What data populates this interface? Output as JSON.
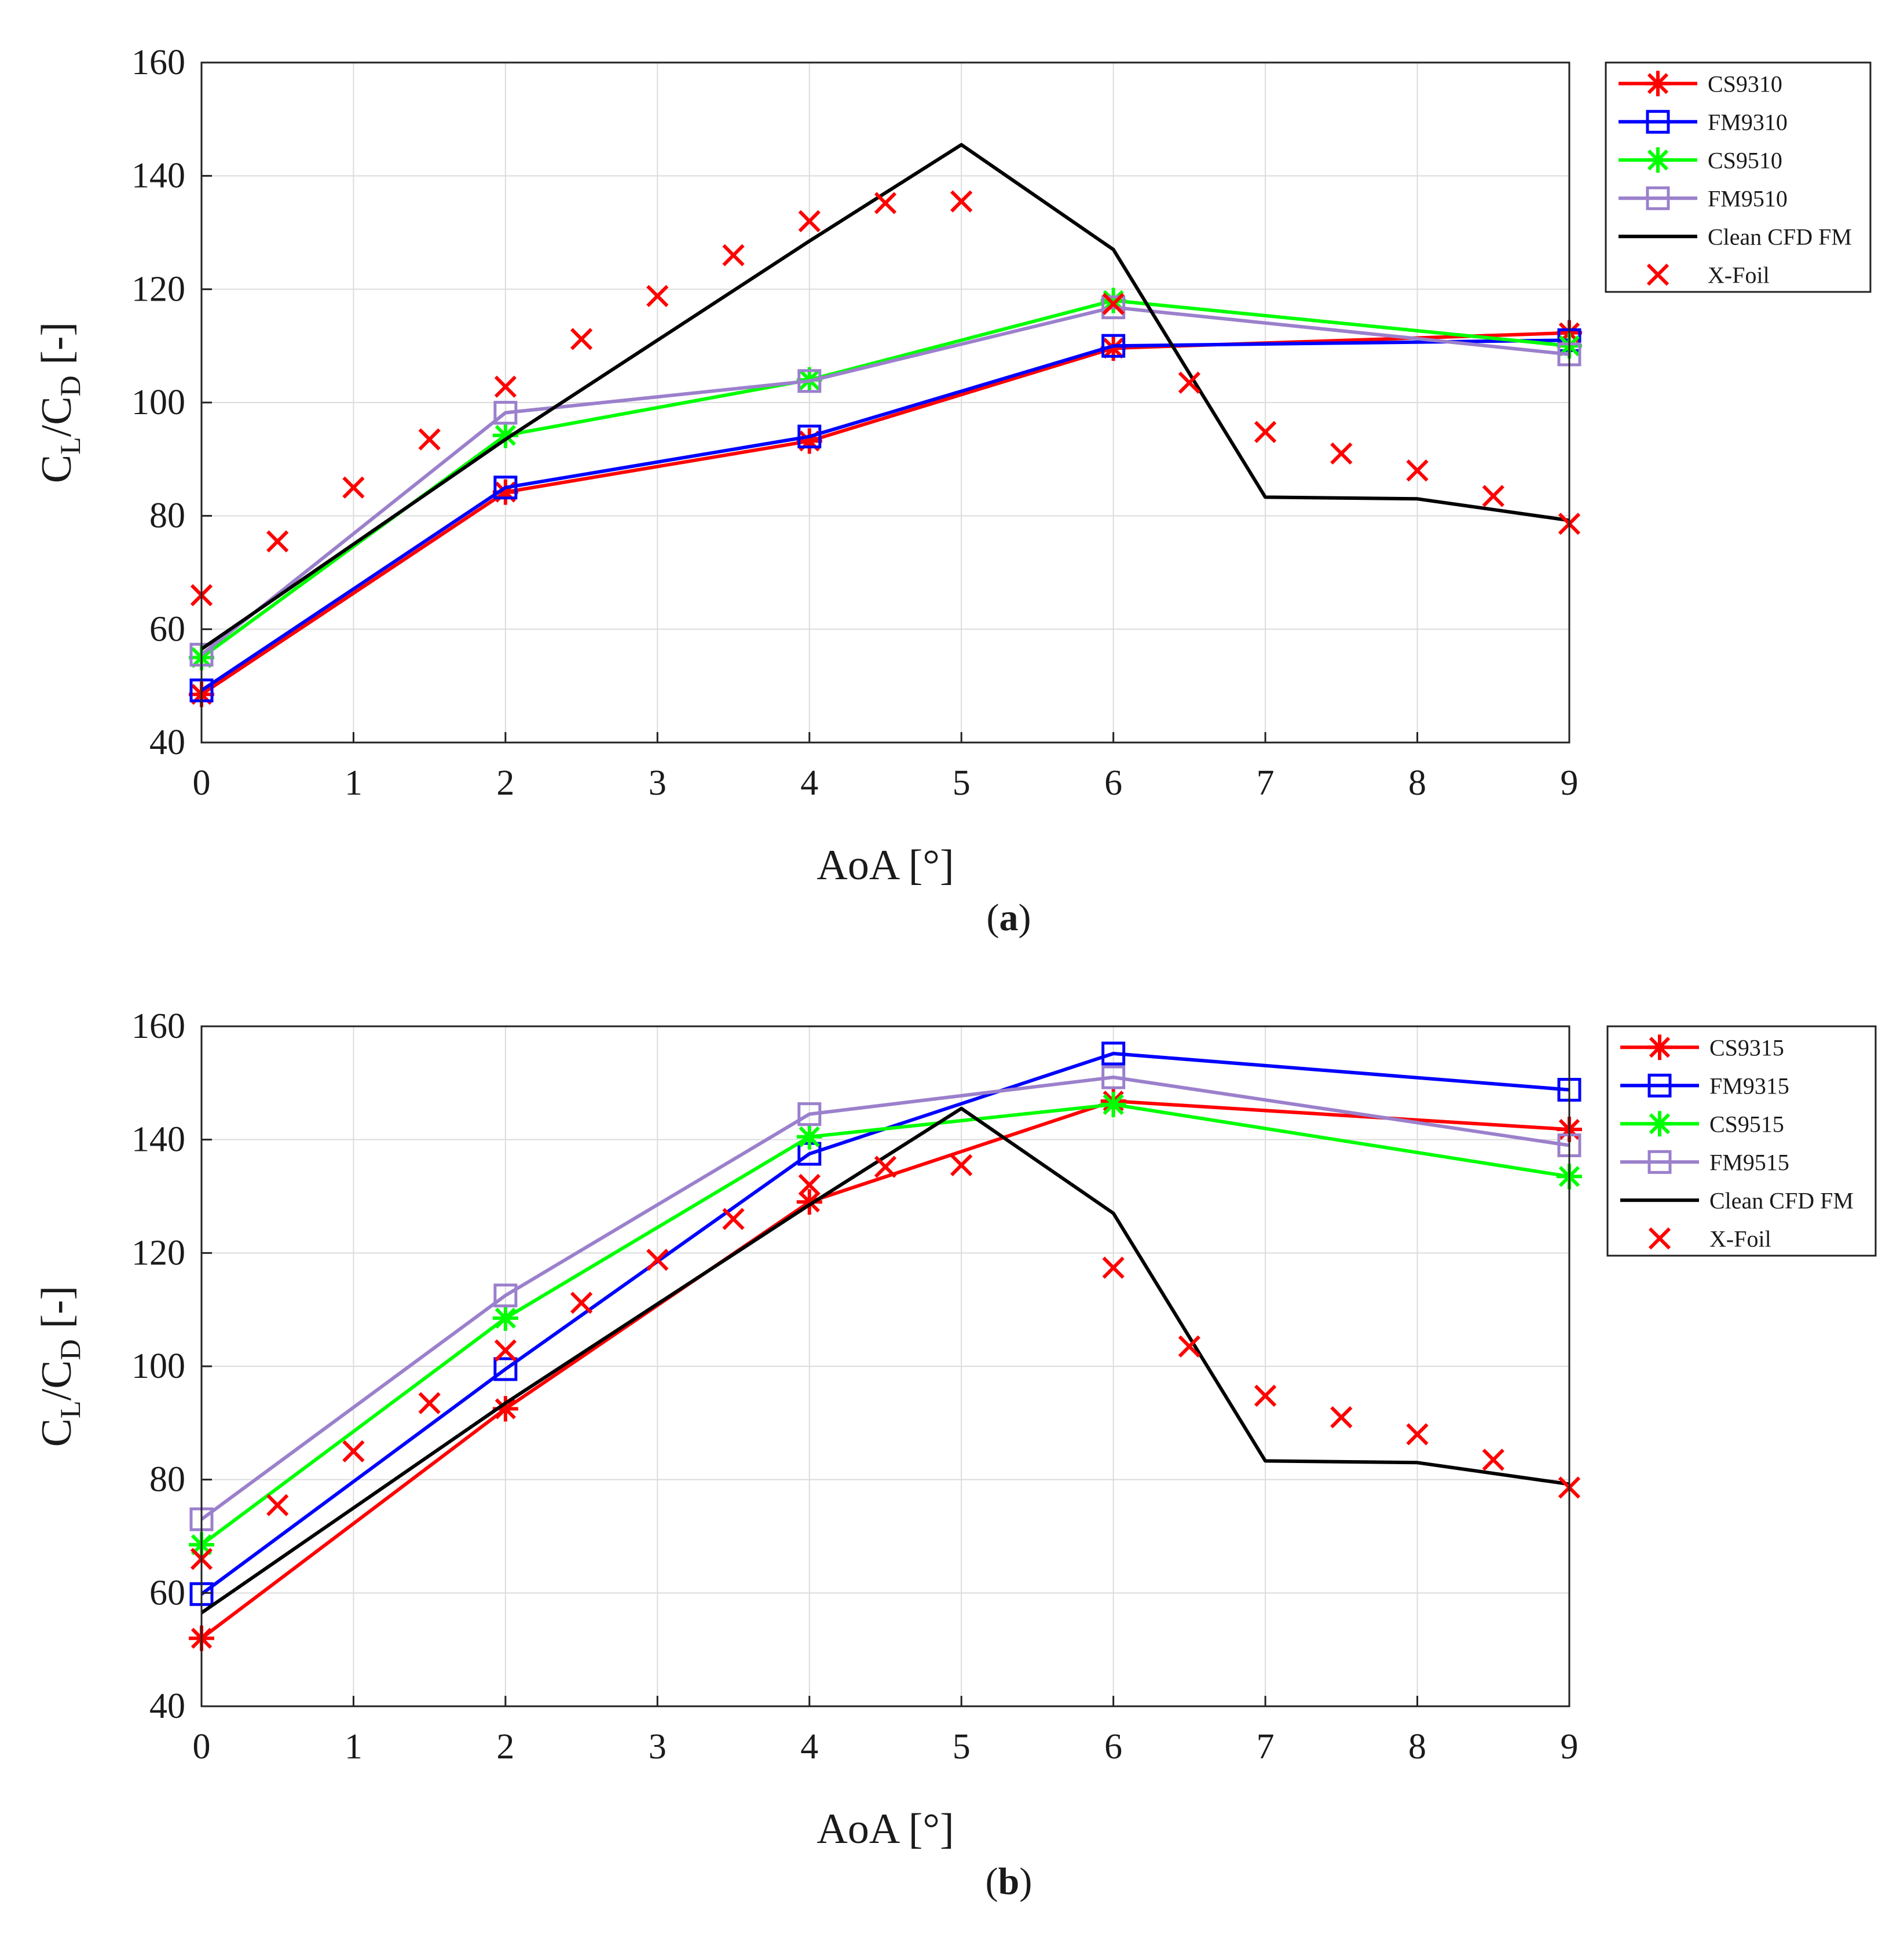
{
  "figure": {
    "captions": [
      {
        "open": "(",
        "letter": "a",
        "close": ")"
      },
      {
        "open": "(",
        "letter": "b",
        "close": ")"
      }
    ]
  },
  "chart_data": [
    {
      "type": "line",
      "panel": "a",
      "xlabel": "AoA [°]",
      "ylabel": {
        "c1": "C",
        "s1": "L",
        "mid": "/C",
        "s2": "D",
        "unit": " [-]"
      },
      "xlim": [
        0,
        9
      ],
      "ylim": [
        40,
        160
      ],
      "xticks": [
        0,
        1,
        2,
        3,
        4,
        5,
        6,
        7,
        8,
        9
      ],
      "yticks": [
        40,
        60,
        80,
        100,
        120,
        140,
        160
      ],
      "grid": true,
      "legend_position": "outside-right-top",
      "series": [
        {
          "name": "CS9310",
          "color": "#ff0000",
          "marker": "asterisk",
          "x": [
            0,
            2,
            4,
            6,
            9
          ],
          "y": [
            48.5,
            84.2,
            93.2,
            109.6,
            112.3
          ]
        },
        {
          "name": "FM9310",
          "color": "#0000ff",
          "marker": "square",
          "x": [
            0,
            2,
            4,
            6,
            9
          ],
          "y": [
            49.2,
            85.0,
            94.0,
            110.0,
            111.0
          ]
        },
        {
          "name": "CS9510",
          "color": "#00ff00",
          "marker": "asterisk",
          "x": [
            0,
            2,
            4,
            6,
            9
          ],
          "y": [
            55.0,
            94.2,
            104.0,
            118.0,
            110.0
          ]
        },
        {
          "name": "FM9510",
          "color": "#9b80cc",
          "marker": "square",
          "x": [
            0,
            2,
            4,
            6,
            9
          ],
          "y": [
            55.5,
            98.2,
            103.8,
            116.8,
            108.5
          ]
        },
        {
          "name": "Clean CFD FM",
          "color": "#000000",
          "marker": "none",
          "x": [
            0,
            2,
            4,
            5,
            6,
            7,
            8,
            9
          ],
          "y": [
            56.5,
            93.5,
            128.5,
            145.5,
            127.0,
            83.3,
            83.0,
            79.2
          ]
        },
        {
          "name": "X-Foil",
          "color": "#ff0000",
          "marker": "x",
          "linestyle": "none",
          "x": [
            0,
            0.5,
            1,
            1.5,
            2,
            2.5,
            3,
            3.5,
            4,
            4.5,
            5,
            6,
            6.5,
            7,
            7.5,
            8,
            8.5,
            9
          ],
          "y": [
            66,
            75.5,
            85,
            93.5,
            102.8,
            111.2,
            118.8,
            126,
            132,
            135.2,
            135.5,
            117.4,
            103.5,
            94.8,
            91,
            88,
            83.5,
            78.6
          ]
        }
      ]
    },
    {
      "type": "line",
      "panel": "b",
      "xlabel": "AoA [°]",
      "ylabel": {
        "c1": "C",
        "s1": "L",
        "mid": "/C",
        "s2": "D",
        "unit": " [-]"
      },
      "xlim": [
        0,
        9
      ],
      "ylim": [
        40,
        160
      ],
      "xticks": [
        0,
        1,
        2,
        3,
        4,
        5,
        6,
        7,
        8,
        9
      ],
      "yticks": [
        40,
        60,
        80,
        100,
        120,
        140,
        160
      ],
      "grid": true,
      "legend_position": "outside-right-top",
      "series": [
        {
          "name": "CS9315",
          "color": "#ff0000",
          "marker": "asterisk",
          "x": [
            0,
            2,
            4,
            6,
            9
          ],
          "y": [
            52,
            92.5,
            129,
            146.8,
            141.8
          ]
        },
        {
          "name": "FM9315",
          "color": "#0000ff",
          "marker": "square",
          "x": [
            0,
            2,
            4,
            6,
            9
          ],
          "y": [
            59.8,
            99.5,
            137.5,
            155.2,
            148.8
          ]
        },
        {
          "name": "CS9515",
          "color": "#00ff00",
          "marker": "asterisk",
          "x": [
            0,
            2,
            4,
            6,
            9
          ],
          "y": [
            68.5,
            108.5,
            140.5,
            146.2,
            133.5
          ]
        },
        {
          "name": "FM9515",
          "color": "#9b80cc",
          "marker": "square",
          "x": [
            0,
            2,
            4,
            6,
            9
          ],
          "y": [
            73,
            112.5,
            144.5,
            151,
            139
          ]
        },
        {
          "name": "Clean CFD FM",
          "color": "#000000",
          "marker": "none",
          "x": [
            0,
            2,
            4,
            5,
            6,
            7,
            8,
            9
          ],
          "y": [
            56.5,
            93.5,
            128.5,
            145.5,
            127.0,
            83.3,
            83.0,
            79.2
          ]
        },
        {
          "name": "X-Foil",
          "color": "#ff0000",
          "marker": "x",
          "linestyle": "none",
          "x": [
            0,
            0.5,
            1,
            1.5,
            2,
            2.5,
            3,
            3.5,
            4,
            4.5,
            5,
            6,
            6.5,
            7,
            7.5,
            8,
            8.5,
            9
          ],
          "y": [
            66,
            75.5,
            85,
            93.5,
            102.8,
            111.2,
            118.8,
            126,
            132,
            135.2,
            135.5,
            117.4,
            103.5,
            94.8,
            91,
            88,
            83.5,
            78.6
          ]
        }
      ]
    }
  ]
}
